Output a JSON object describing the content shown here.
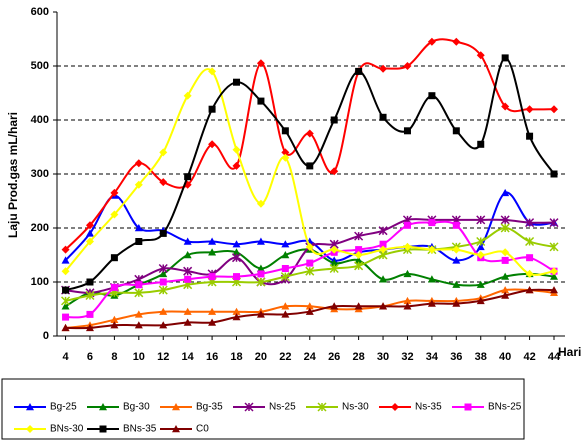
{
  "chart_data": {
    "type": "line",
    "y_label": "Laju Prod.gas mL/hari",
    "x_label": "Hari",
    "x": [
      4,
      6,
      8,
      10,
      12,
      14,
      16,
      18,
      20,
      22,
      24,
      26,
      28,
      30,
      32,
      34,
      36,
      38,
      40,
      42,
      44
    ],
    "xlim": [
      3.3,
      44.9
    ],
    "xticks": [
      4,
      6,
      8,
      10,
      12,
      14,
      16,
      18,
      20,
      22,
      24,
      26,
      28,
      30,
      32,
      34,
      36,
      38,
      40,
      42,
      44
    ],
    "ylim": [
      0,
      600
    ],
    "yticks": [
      0,
      100,
      200,
      300,
      400,
      500,
      600
    ],
    "grid": true,
    "series": [
      {
        "name": "Bg-25",
        "color": "#0000ff",
        "marker": "triangle",
        "values": [
          140,
          190,
          260,
          200,
          195,
          175,
          175,
          170,
          175,
          170,
          175,
          140,
          155,
          160,
          165,
          165,
          140,
          165,
          265,
          210,
          210
        ]
      },
      {
        "name": "Bg-30",
        "color": "#008000",
        "marker": "triangle",
        "values": [
          55,
          80,
          75,
          95,
          115,
          150,
          155,
          155,
          125,
          150,
          160,
          135,
          140,
          105,
          115,
          105,
          95,
          95,
          110,
          115,
          110
        ]
      },
      {
        "name": "Bg-35",
        "color": "#ff6600",
        "marker": "triangle",
        "values": [
          15,
          20,
          30,
          40,
          45,
          45,
          45,
          45,
          45,
          55,
          55,
          50,
          50,
          55,
          65,
          65,
          65,
          70,
          85,
          85,
          80
        ]
      },
      {
        "name": "Ns-25",
        "color": "#800080",
        "marker": "star",
        "values": [
          85,
          80,
          90,
          105,
          125,
          120,
          115,
          145,
          100,
          105,
          165,
          170,
          185,
          195,
          215,
          215,
          215,
          215,
          215,
          210,
          210
        ]
      },
      {
        "name": "Ns-30",
        "color": "#99cc00",
        "marker": "star",
        "values": [
          65,
          75,
          80,
          80,
          85,
          95,
          100,
          100,
          100,
          110,
          120,
          125,
          130,
          150,
          160,
          160,
          165,
          175,
          200,
          175,
          165
        ]
      },
      {
        "name": "Ns-35",
        "color": "#ff0000",
        "marker": "diamond",
        "values": [
          160,
          205,
          265,
          320,
          285,
          280,
          355,
          315,
          505,
          340,
          375,
          305,
          490,
          495,
          500,
          545,
          545,
          520,
          425,
          420,
          420
        ]
      },
      {
        "name": "BNs-25",
        "color": "#ff00ff",
        "marker": "square",
        "values": [
          35,
          40,
          90,
          95,
          100,
          105,
          110,
          110,
          115,
          125,
          135,
          155,
          160,
          170,
          205,
          210,
          205,
          145,
          140,
          145,
          120
        ]
      },
      {
        "name": "BNs-30",
        "color": "#ffff00",
        "marker": "diamond",
        "values": [
          120,
          175,
          225,
          280,
          340,
          445,
          490,
          345,
          245,
          330,
          165,
          160,
          150,
          160,
          165,
          160,
          160,
          150,
          155,
          115,
          120
        ]
      },
      {
        "name": "BNs-35",
        "color": "#000000",
        "marker": "square",
        "values": [
          85,
          100,
          145,
          175,
          190,
          295,
          420,
          470,
          435,
          380,
          315,
          400,
          490,
          405,
          380,
          445,
          380,
          355,
          515,
          370,
          300
        ]
      },
      {
        "name": "C0",
        "color": "#800000",
        "marker": "triangle",
        "values": [
          15,
          15,
          20,
          20,
          20,
          25,
          25,
          35,
          40,
          40,
          45,
          55,
          55,
          55,
          55,
          60,
          60,
          65,
          75,
          85,
          85
        ]
      }
    ]
  }
}
